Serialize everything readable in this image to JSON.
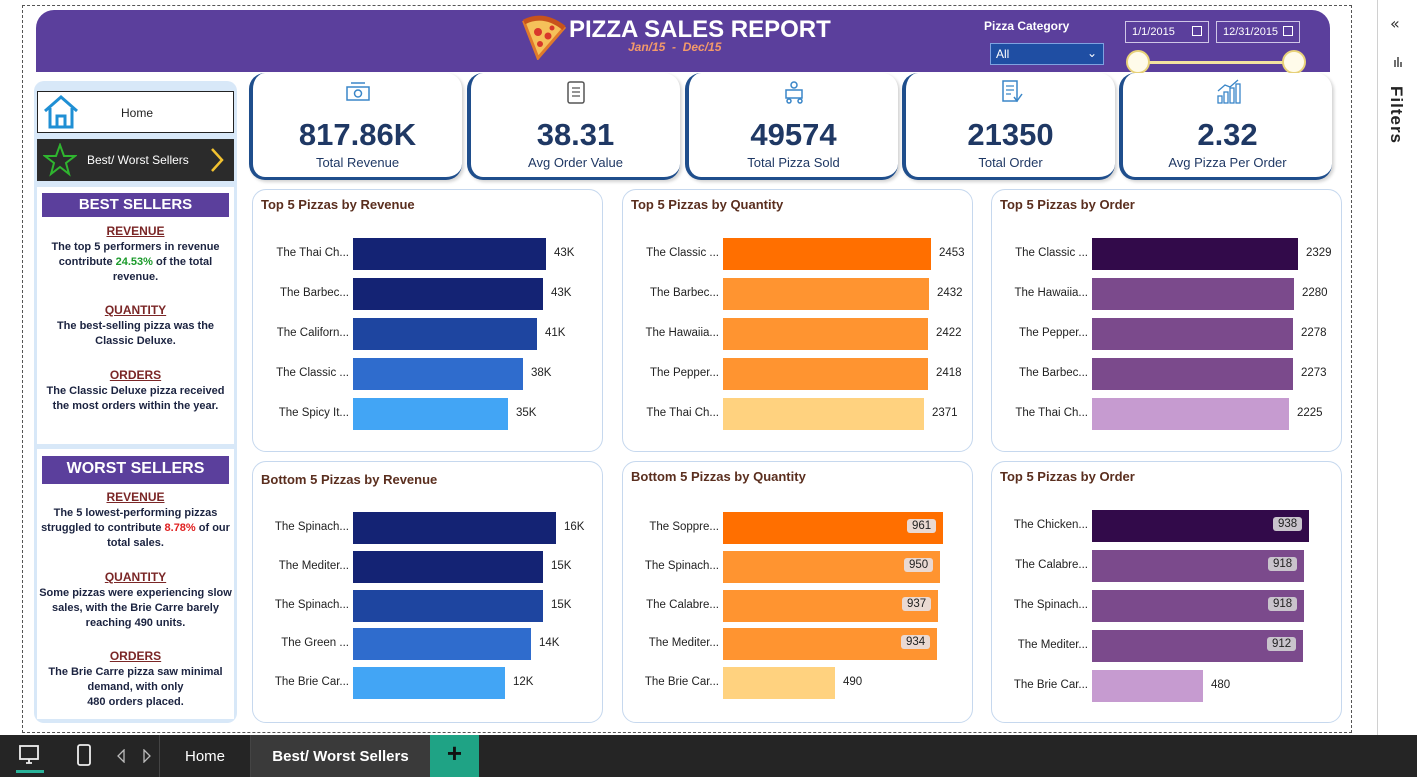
{
  "header": {
    "title": "PIZZA SALES REPORT",
    "subtitle": "Jan/15  -  Dec/15",
    "category_label": "Pizza Category",
    "category_value": "All",
    "date_start": "1/1/2015",
    "date_end": "12/31/2015"
  },
  "nav": {
    "home_label": "Home",
    "bw_label": "Best/ Worst Sellers"
  },
  "best": {
    "heading": "BEST SELLERS",
    "revenue_h": "REVENUE",
    "revenue_t1": "The top 5 performers in revenue contribute ",
    "revenue_pct": "24.53%",
    "revenue_t2": " of the total revenue.",
    "quantity_h": "QUANTITY",
    "quantity_t": "The best-selling pizza was the Classic Deluxe.",
    "orders_h": "ORDERS",
    "orders_t": "The Classic Deluxe pizza received the most orders  within the year."
  },
  "worst": {
    "heading": "WORST SELLERS",
    "revenue_h": "REVENUE",
    "revenue_t1": "The 5 lowest-performing pizzas struggled to contribute ",
    "revenue_pct": "8.78%",
    "revenue_t2": " of our total sales.",
    "quantity_h": "QUANTITY",
    "quantity_t": "Some pizzas were experiencing slow sales, with the Brie Carre barely reaching 490 units.",
    "orders_h": "ORDERS",
    "orders_t1": "The Brie Carre pizza saw minimal demand, with only",
    "orders_t2": "480 orders placed."
  },
  "kpis": [
    {
      "value": "817.86K",
      "label": "Total Revenue",
      "icon": "money-icon"
    },
    {
      "value": "38.31",
      "label": "Avg Order Value",
      "icon": "clipboard-icon"
    },
    {
      "value": "49574",
      "label": "Total Pizza Sold",
      "icon": "delivery-icon"
    },
    {
      "value": "21350",
      "label": "Total Order",
      "icon": "order-list-icon"
    },
    {
      "value": "2.32",
      "label": "Avg Pizza Per Order",
      "icon": "bar-chart-icon"
    }
  ],
  "colors": {
    "header": "#5b3f9c",
    "blue_bars": [
      "#142374",
      "#142374",
      "#1e45a0",
      "#2f6ccd",
      "#42a5f5"
    ],
    "orange_bars": [
      "#ff6f00",
      "#ff9430",
      "#ff9430",
      "#ff9430",
      "#ffd27f"
    ],
    "purple_bars": [
      "#320a4a",
      "#7b4a8c",
      "#7b4a8c",
      "#7b4a8c",
      "#c69bd0"
    ]
  },
  "chart_data": [
    {
      "type": "bar",
      "title": "Top 5 Pizzas by Revenue",
      "categories": [
        "The Thai Ch...",
        "The Barbec...",
        "The Californ...",
        "The Classic ...",
        "The Spicy It..."
      ],
      "values": [
        43434,
        42768,
        41410,
        38180,
        34831
      ],
      "labels": [
        "43K",
        "43K",
        "41K",
        "38K",
        "35K"
      ]
    },
    {
      "type": "bar",
      "title": "Top 5 Pizzas by Quantity",
      "categories": [
        "The Classic ...",
        "The Barbec...",
        "The Hawaiia...",
        "The Pepper...",
        "The Thai Ch..."
      ],
      "values": [
        2453,
        2432,
        2422,
        2418,
        2371
      ],
      "labels": [
        "2453",
        "2432",
        "2422",
        "2418",
        "2371"
      ]
    },
    {
      "type": "bar",
      "title": "Top 5 Pizzas by Order",
      "categories": [
        "The Classic ...",
        "The Hawaiia...",
        "The Pepper...",
        "The Barbec...",
        "The Thai Ch..."
      ],
      "values": [
        2329,
        2280,
        2278,
        2273,
        2225
      ],
      "labels": [
        "2329",
        "2280",
        "2278",
        "2273",
        "2225"
      ]
    },
    {
      "type": "bar",
      "title": "Bottom 5 Pizzas by Revenue",
      "categories": [
        "The Spinach...",
        "The Mediter...",
        "The Spinach...",
        "The Green ...",
        "The Brie Car..."
      ],
      "values": [
        16000,
        15000,
        15000,
        14000,
        12000
      ],
      "labels": [
        "16K",
        "15K",
        "15K",
        "14K",
        "12K"
      ]
    },
    {
      "type": "bar",
      "title": "Bottom 5 Pizzas by Quantity",
      "categories": [
        "The Soppre...",
        "The Spinach...",
        "The Calabre...",
        "The Mediter...",
        "The Brie Car..."
      ],
      "values": [
        961,
        950,
        937,
        934,
        490
      ],
      "labels": [
        "961",
        "950",
        "937",
        "934",
        "490"
      ]
    },
    {
      "type": "bar",
      "title": "Top 5 Pizzas by Order",
      "categories": [
        "The Chicken...",
        "The Calabre...",
        "The Spinach...",
        "The Mediter...",
        "The Brie Car..."
      ],
      "values": [
        938,
        918,
        918,
        912,
        480
      ],
      "labels": [
        "938",
        "918",
        "918",
        "912",
        "480"
      ]
    }
  ],
  "tabs": {
    "home": "Home",
    "bw": "Best/ Worst Sellers",
    "add": "+"
  },
  "filters_label": "Filters",
  "collapse_glyph": "«"
}
